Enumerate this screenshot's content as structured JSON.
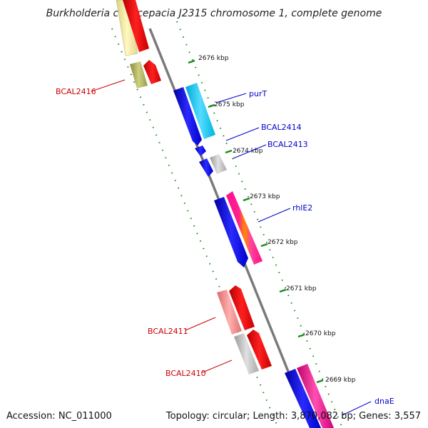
{
  "title": "Burkholderia cenocepacia J2315 chromosome 1, complete genome",
  "footer": {
    "accession": "Accession: NC_011000",
    "topology": "Topology: circular; Length: 3,870,082 bp; Genes: 3,557"
  },
  "colors": {
    "backbone": "#7a7a7a",
    "tick": "#1a8a1a",
    "forward_label": "#0000cc",
    "reverse_label": "#cc0000"
  },
  "kbp_labels": [
    "2676 kbp",
    "2675 kbp",
    "2674 kbp",
    "2673 kbp",
    "2672 kbp",
    "2671 kbp",
    "2670 kbp",
    "2669 kbp"
  ],
  "gene_labels": {
    "purT": "purT",
    "BCAL2414": "BCAL2414",
    "BCAL2413": "BCAL2413",
    "rhlE2": "rhlE2",
    "dnaE": "dnaE",
    "BCAL2416": "BCAL2416",
    "BCAL2411": "BCAL2411",
    "BCAL2410": "BCAL2410"
  }
}
